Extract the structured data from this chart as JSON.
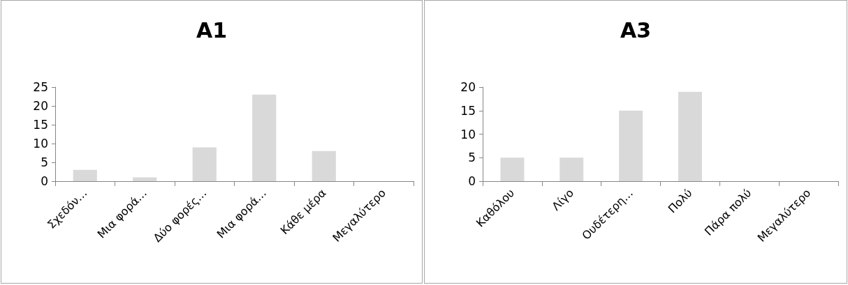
{
  "chart_data": [
    {
      "type": "bar",
      "title": "A1",
      "categories": [
        "Σχεδόν…",
        "Μια φορά…",
        "Δύο φορές…",
        "Μια φορά…",
        "Κάθε μέρα",
        "Μεγαλύτερο"
      ],
      "values": [
        3,
        1,
        9,
        23,
        8,
        0
      ],
      "color": "#d9d9d9",
      "ylim": [
        0,
        25
      ],
      "yticks": [
        0,
        5,
        10,
        15,
        20,
        25
      ]
    },
    {
      "type": "bar",
      "title": "A3",
      "categories": [
        "Καθόλου",
        "Λίγο",
        "Ουδέτερη…",
        "Πολύ",
        "Πάρα πολύ",
        "Μεγαλύτερο"
      ],
      "values": [
        5,
        5,
        15,
        19,
        0,
        0
      ],
      "color": "#d9d9d9",
      "ylim": [
        0,
        20
      ],
      "yticks": [
        0,
        5,
        10,
        15,
        20
      ]
    }
  ]
}
